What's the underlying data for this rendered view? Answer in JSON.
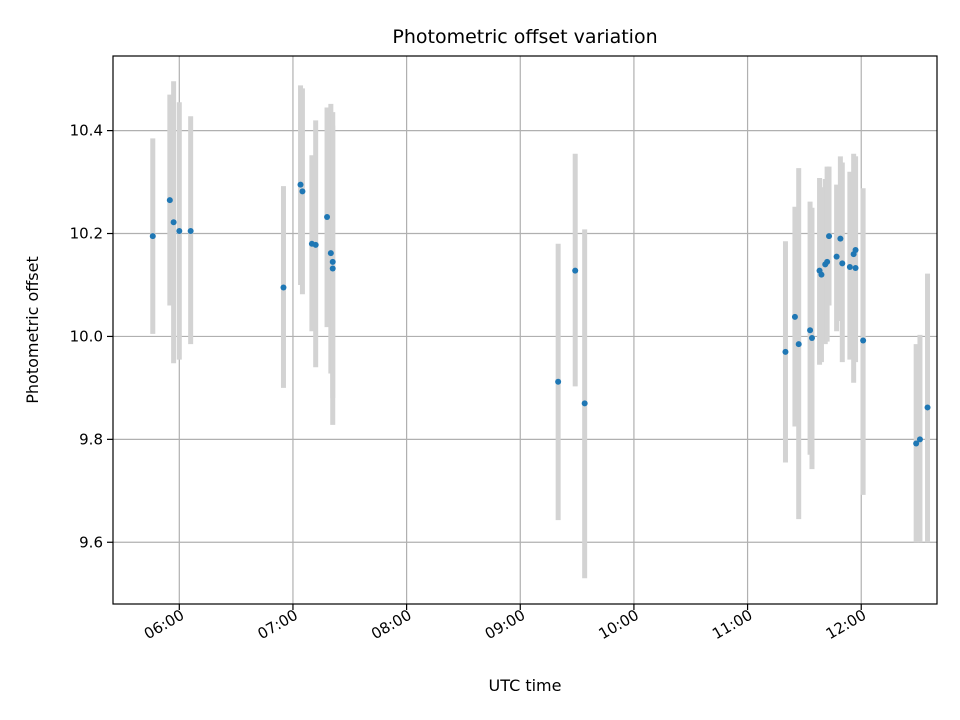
{
  "chart_data": {
    "type": "scatter",
    "title": "Photometric offset variation",
    "xlabel": "UTC time",
    "ylabel": "Photometric offset",
    "x_axis": "time",
    "xlim": [
      "05:25",
      "12:40"
    ],
    "ylim": [
      9.48,
      10.545
    ],
    "x_ticks": [
      "06:00",
      "07:00",
      "08:00",
      "09:00",
      "10:00",
      "11:00",
      "12:00"
    ],
    "y_ticks": [
      9.6,
      9.8,
      10.0,
      10.2,
      10.4
    ],
    "y_tick_labels": [
      "9.6",
      "9.8",
      "10.0",
      "10.2",
      "10.4"
    ],
    "grid": true,
    "marker_color": "#1f77b4",
    "errorbar_color": "#d3d3d3",
    "points": [
      {
        "x": "05:46",
        "y": 10.195,
        "lo": 10.005,
        "hi": 10.385
      },
      {
        "x": "05:55",
        "y": 10.265,
        "lo": 10.06,
        "hi": 10.47
      },
      {
        "x": "05:57",
        "y": 10.222,
        "lo": 9.948,
        "hi": 10.496
      },
      {
        "x": "06:00",
        "y": 10.205,
        "lo": 9.955,
        "hi": 10.455
      },
      {
        "x": "06:06",
        "y": 10.205,
        "lo": 9.985,
        "hi": 10.428
      },
      {
        "x": "06:55",
        "y": 10.095,
        "lo": 9.9,
        "hi": 10.292
      },
      {
        "x": "07:04",
        "y": 10.295,
        "lo": 10.1,
        "hi": 10.488
      },
      {
        "x": "07:05",
        "y": 10.282,
        "lo": 10.082,
        "hi": 10.482
      },
      {
        "x": "07:10",
        "y": 10.18,
        "lo": 10.01,
        "hi": 10.352
      },
      {
        "x": "07:12",
        "y": 10.178,
        "lo": 9.94,
        "hi": 10.42
      },
      {
        "x": "07:18",
        "y": 10.232,
        "lo": 10.018,
        "hi": 10.445
      },
      {
        "x": "07:20",
        "y": 10.162,
        "lo": 9.928,
        "hi": 10.452
      },
      {
        "x": "07:21",
        "y": 10.145,
        "lo": 9.88,
        "hi": 10.41
      },
      {
        "x": "07:21",
        "y": 10.132,
        "lo": 9.828,
        "hi": 10.436
      },
      {
        "x": "09:20",
        "y": 9.912,
        "lo": 9.643,
        "hi": 10.18
      },
      {
        "x": "09:29",
        "y": 10.128,
        "lo": 9.903,
        "hi": 10.355
      },
      {
        "x": "09:34",
        "y": 9.87,
        "lo": 9.53,
        "hi": 10.208
      },
      {
        "x": "11:20",
        "y": 9.97,
        "lo": 9.755,
        "hi": 10.185
      },
      {
        "x": "11:25",
        "y": 10.038,
        "lo": 9.825,
        "hi": 10.252
      },
      {
        "x": "11:27",
        "y": 9.985,
        "lo": 9.645,
        "hi": 10.327
      },
      {
        "x": "11:33",
        "y": 10.012,
        "lo": 9.77,
        "hi": 10.262
      },
      {
        "x": "11:34",
        "y": 9.997,
        "lo": 9.742,
        "hi": 10.25
      },
      {
        "x": "11:38",
        "y": 10.128,
        "lo": 9.945,
        "hi": 10.308
      },
      {
        "x": "11:39",
        "y": 10.12,
        "lo": 9.95,
        "hi": 10.29
      },
      {
        "x": "11:41",
        "y": 10.14,
        "lo": 9.985,
        "hi": 10.306
      },
      {
        "x": "11:42",
        "y": 10.145,
        "lo": 9.99,
        "hi": 10.33
      },
      {
        "x": "11:43",
        "y": 10.195,
        "lo": 10.06,
        "hi": 10.33
      },
      {
        "x": "11:47",
        "y": 10.155,
        "lo": 10.01,
        "hi": 10.295
      },
      {
        "x": "11:49",
        "y": 10.19,
        "lo": 10.03,
        "hi": 10.35
      },
      {
        "x": "11:50",
        "y": 10.142,
        "lo": 9.95,
        "hi": 10.338
      },
      {
        "x": "11:54",
        "y": 10.135,
        "lo": 9.955,
        "hi": 10.32
      },
      {
        "x": "11:56",
        "y": 10.16,
        "lo": 9.91,
        "hi": 10.355
      },
      {
        "x": "11:57",
        "y": 10.133,
        "lo": 9.95,
        "hi": 10.35
      },
      {
        "x": "11:57",
        "y": 10.168,
        "lo": 10.008,
        "hi": 10.35
      },
      {
        "x": "12:01",
        "y": 9.992,
        "lo": 9.692,
        "hi": 10.288
      },
      {
        "x": "12:29",
        "y": 9.792,
        "lo": 9.6,
        "hi": 9.985
      },
      {
        "x": "12:31",
        "y": 9.8,
        "lo": 9.6,
        "hi": 10.003
      },
      {
        "x": "12:35",
        "y": 9.862,
        "lo": 9.6,
        "hi": 10.122
      }
    ]
  }
}
